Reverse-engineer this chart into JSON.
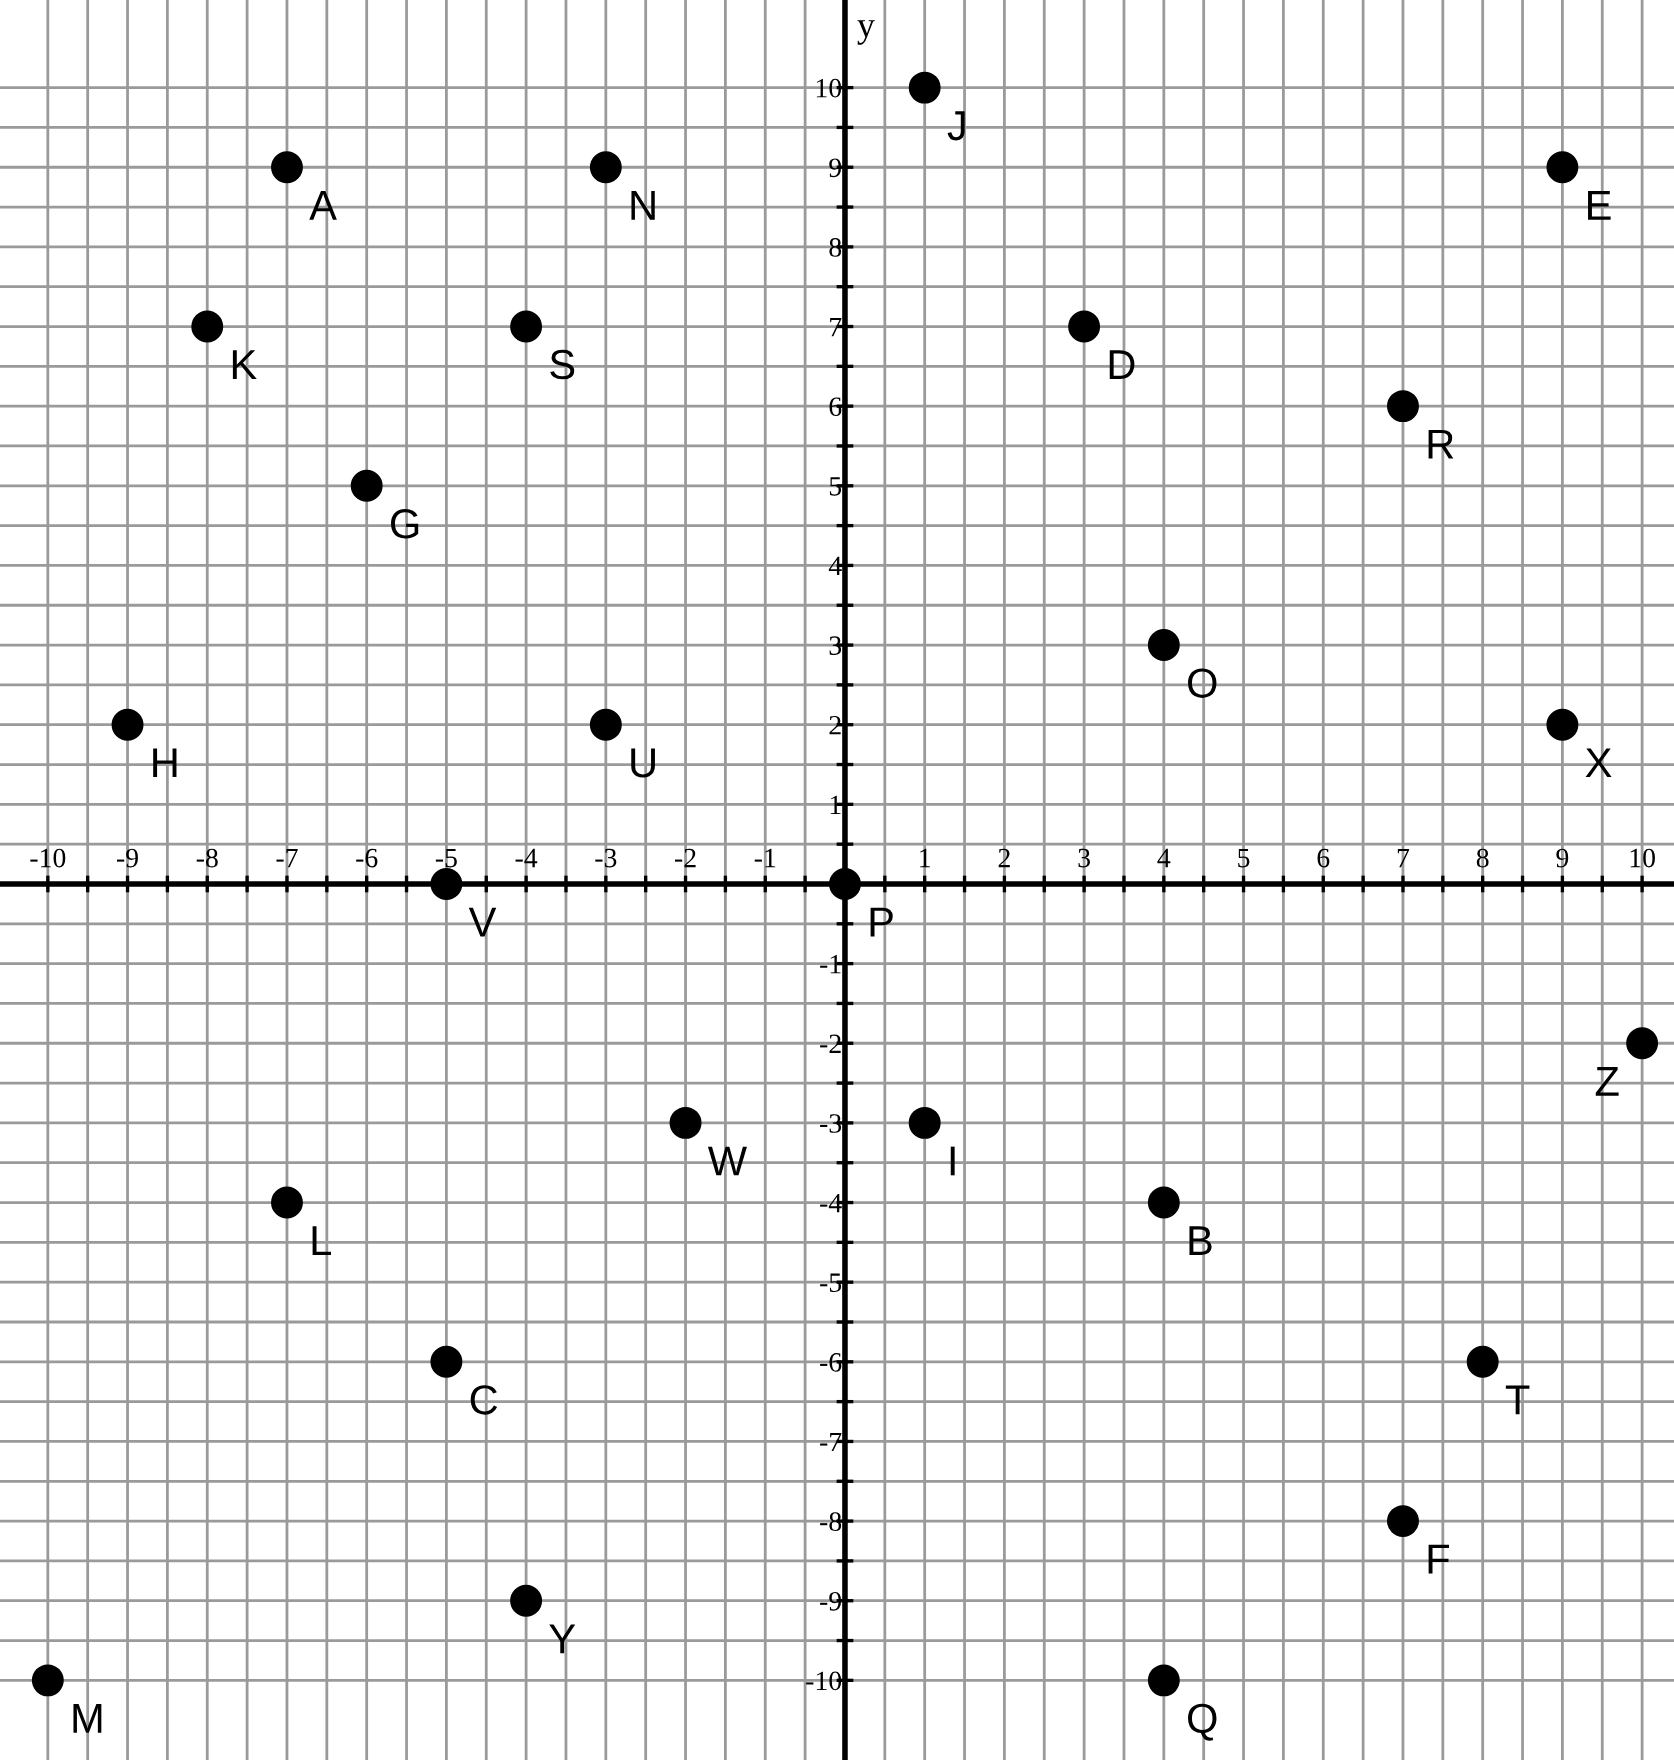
{
  "chart_data": {
    "type": "scatter",
    "ylabel": "y",
    "x": [
      -7,
      -3,
      1,
      9,
      -8,
      -4,
      3,
      7,
      -6,
      4,
      -9,
      -3,
      9,
      -5,
      0,
      10,
      -2,
      1,
      -7,
      4,
      -5,
      8,
      7,
      -4,
      -10,
      4
    ],
    "values": [
      9,
      9,
      10,
      9,
      7,
      7,
      7,
      6,
      5,
      3,
      2,
      2,
      2,
      0,
      0,
      -2,
      -3,
      -3,
      -4,
      -4,
      -6,
      -6,
      -8,
      -9,
      -10,
      -10
    ],
    "color": "#000000",
    "marker": "circle",
    "grid": true,
    "annotations": [
      {
        "text": "A",
        "x": -7,
        "y": 9
      },
      {
        "text": "N",
        "x": -3,
        "y": 9
      },
      {
        "text": "J",
        "x": 1,
        "y": 10
      },
      {
        "text": "E",
        "x": 9,
        "y": 9
      },
      {
        "text": "K",
        "x": -8,
        "y": 7
      },
      {
        "text": "S",
        "x": -4,
        "y": 7
      },
      {
        "text": "D",
        "x": 3,
        "y": 7
      },
      {
        "text": "R",
        "x": 7,
        "y": 6
      },
      {
        "text": "G",
        "x": -6,
        "y": 5
      },
      {
        "text": "O",
        "x": 4,
        "y": 3
      },
      {
        "text": "H",
        "x": -9,
        "y": 2
      },
      {
        "text": "U",
        "x": -3,
        "y": 2
      },
      {
        "text": "X",
        "x": 9,
        "y": 2
      },
      {
        "text": "V",
        "x": -5,
        "y": 0
      },
      {
        "text": "P",
        "x": 0,
        "y": 0
      },
      {
        "text": "Z",
        "x": 10,
        "y": -2
      },
      {
        "text": "W",
        "x": -2,
        "y": -3
      },
      {
        "text": "I",
        "x": 1,
        "y": -3
      },
      {
        "text": "L",
        "x": -7,
        "y": -4
      },
      {
        "text": "B",
        "x": 4,
        "y": -4
      },
      {
        "text": "C",
        "x": -5,
        "y": -6
      },
      {
        "text": "T",
        "x": 8,
        "y": -6
      },
      {
        "text": "F",
        "x": 7,
        "y": -8
      },
      {
        "text": "Y",
        "x": -4,
        "y": -9
      },
      {
        "text": "M",
        "x": -10,
        "y": -10
      },
      {
        "text": "Q",
        "x": 4,
        "y": -10
      }
    ],
    "xlim": [
      -10.6,
      10.4
    ],
    "ylim": [
      -11,
      11.1
    ],
    "xticks": [
      -10,
      {
        "value": -9.5,
        "label": null
      },
      -9,
      {
        "value": -8.5,
        "label": null
      },
      -8,
      {
        "value": -7.5,
        "label": null
      },
      -7,
      {
        "value": -6.5,
        "label": null
      },
      -6,
      {
        "value": -5.5,
        "label": null
      },
      -5,
      {
        "value": -4.5,
        "label": null
      },
      -4,
      {
        "value": -3.5,
        "label": null
      },
      -3,
      {
        "value": -2.5,
        "label": null
      },
      -2,
      {
        "value": -1.5,
        "label": null
      },
      -1,
      {
        "value": -0.5,
        "label": null
      },
      {
        "value": 0,
        "label": null
      },
      {
        "value": 0.5,
        "label": null
      },
      1,
      {
        "value": 1.5,
        "label": null
      },
      2,
      {
        "value": 2.5,
        "label": null
      },
      3,
      {
        "value": 3.5,
        "label": null
      },
      4,
      {
        "value": 4.5,
        "label": null
      },
      5,
      {
        "value": 5.5,
        "label": null
      },
      6,
      {
        "value": 6.5,
        "label": null
      },
      7,
      {
        "value": 7.5,
        "label": null
      },
      8,
      {
        "value": 8.5,
        "label": null
      },
      9,
      {
        "value": 9.5,
        "label": null
      },
      10
    ],
    "yticks": [
      -10,
      {
        "value": -9.5,
        "label": null
      },
      -9,
      {
        "value": -8.5,
        "label": null
      },
      -8,
      {
        "value": -7.5,
        "label": null
      },
      -7,
      {
        "value": -6.5,
        "label": null
      },
      -6,
      {
        "value": -5.5,
        "label": null
      },
      -5,
      {
        "value": -4.5,
        "label": null
      },
      -4,
      {
        "value": -3.5,
        "label": null
      },
      -3,
      {
        "value": -2.5,
        "label": null
      },
      -2,
      {
        "value": -1.5,
        "label": null
      },
      -1,
      {
        "value": -0.5,
        "label": null
      },
      {
        "value": 0,
        "label": null
      },
      {
        "value": 0.5,
        "label": null
      },
      1,
      {
        "value": 1.5,
        "label": null
      },
      2,
      {
        "value": 2.5,
        "label": null
      },
      3,
      {
        "value": 3.5,
        "label": null
      },
      4,
      {
        "value": 4.5,
        "label": null
      },
      5,
      {
        "value": 5.5,
        "label": null
      },
      6,
      {
        "value": 6.5,
        "label": null
      },
      7,
      {
        "value": 7.5,
        "label": null
      },
      8,
      {
        "value": 8.5,
        "label": null
      },
      9,
      {
        "value": 9.5,
        "label": null
      },
      10
    ]
  }
}
